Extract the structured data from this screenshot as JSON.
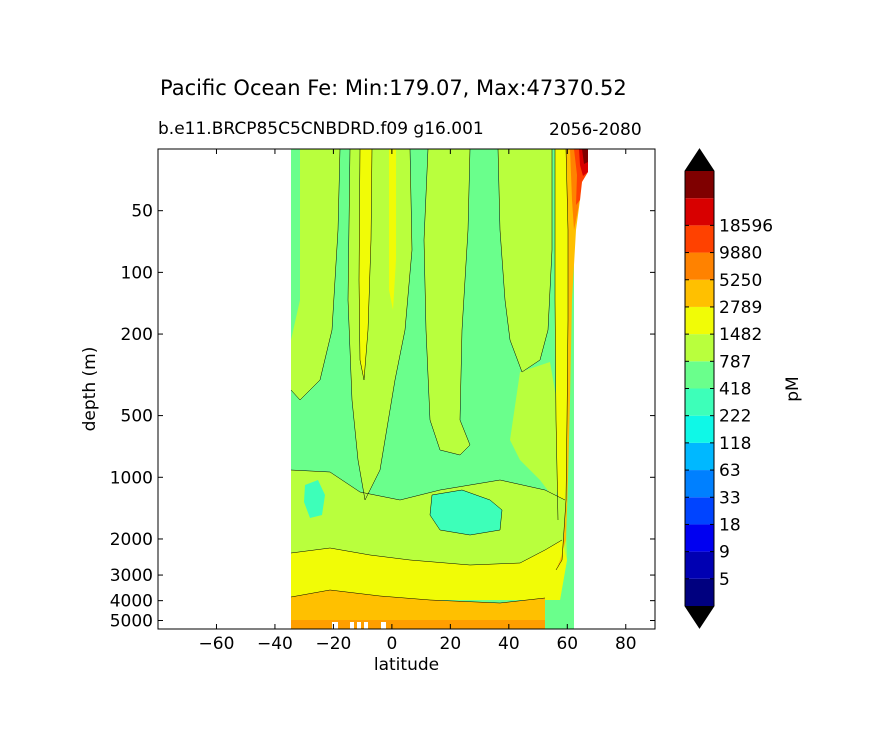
{
  "title": "Pacific Ocean Fe: Min:179.07, Max:47370.52",
  "subtitle_left": "b.e11.BRCP85C5CNBDRD.f09 g16.001",
  "subtitle_right": "2056-2080",
  "chart_data": {
    "type": "heatmap",
    "variant": "filled-contour",
    "xlabel": "latitude",
    "ylabel": "depth (m)",
    "xlim": [
      -80,
      90
    ],
    "ylim": [
      5500,
      25
    ],
    "y_scale": "log",
    "x_ticks": [
      -60,
      -40,
      -20,
      0,
      20,
      40,
      60,
      80
    ],
    "x_tick_labels": [
      "−60",
      "−40",
      "−20",
      "0",
      "20",
      "40",
      "60",
      "80"
    ],
    "y_ticks": [
      50,
      100,
      200,
      500,
      1000,
      2000,
      3000,
      4000,
      5000
    ],
    "y_tick_labels": [
      "50",
      "100",
      "200",
      "500",
      "1000",
      "2000",
      "3000",
      "4000",
      "5000"
    ],
    "data_extent_lat": [
      -34,
      67
    ],
    "colorbar": {
      "label": "pM",
      "extend": "both",
      "levels": [
        5,
        9,
        18,
        33,
        63,
        118,
        222,
        418,
        787,
        1482,
        2789,
        5250,
        9880,
        18596
      ],
      "level_labels": [
        "5",
        "9",
        "18",
        "33",
        "63",
        "118",
        "222",
        "418",
        "787",
        "1482",
        "2789",
        "5250",
        "9880",
        "18596"
      ],
      "colors": [
        "#00007f",
        "#0000b2",
        "#0000f1",
        "#0044ff",
        "#0080ff",
        "#00b8ff",
        "#0ff8e7",
        "#3dffb9",
        "#6aff8c",
        "#b9ff3d",
        "#f1fc06",
        "#ffc000",
        "#ff8200",
        "#ff4100",
        "#d80000",
        "#7f0000"
      ],
      "under_color": "#000000",
      "over_color": "#000000"
    }
  }
}
